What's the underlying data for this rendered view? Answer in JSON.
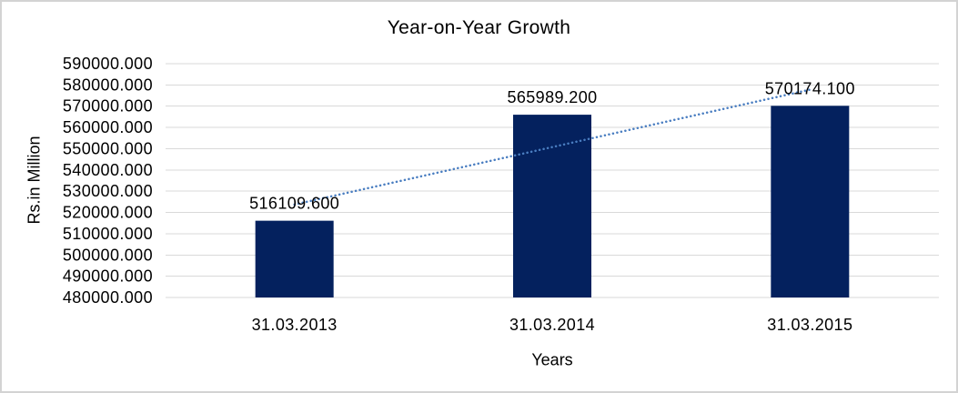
{
  "chart_data": {
    "type": "bar",
    "title": "Year-on-Year Growth",
    "xlabel": "Years",
    "ylabel": "Rs.in Million",
    "categories": [
      "31.03.2013",
      "31.03.2014",
      "31.03.2015"
    ],
    "values": [
      516109.6,
      565989.2,
      570174.1
    ],
    "value_labels": [
      "516109.600",
      "565989.200",
      "570174.100"
    ],
    "ylim": [
      480000,
      590000
    ],
    "ytick_step": 10000,
    "ytick_labels": [
      "590000.000",
      "580000.000",
      "570000.000",
      "560000.000",
      "550000.000",
      "540000.000",
      "530000.000",
      "520000.000",
      "510000.000",
      "500000.000",
      "490000.000",
      "480000.000"
    ],
    "grid": true,
    "legend": "none",
    "trendline": {
      "type": "linear",
      "dash": "dotted"
    },
    "colors": {
      "bar": "#04215e",
      "trendline": "#4a7ec1",
      "gridline": "#d9d9d9",
      "text": "#000000",
      "border": "#d3d3d3",
      "background": "#ffffff"
    }
  }
}
